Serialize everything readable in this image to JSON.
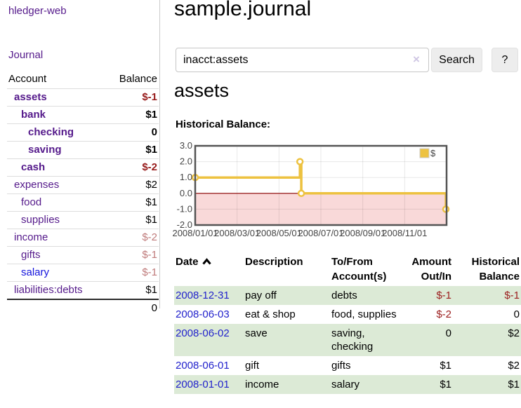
{
  "app": {
    "brand": "hledger-web",
    "nav": {
      "journal": "Journal"
    }
  },
  "sidebar": {
    "header": {
      "account": "Account",
      "balance": "Balance"
    },
    "accounts": [
      {
        "name": "assets",
        "balance": "$-1"
      },
      {
        "name": "bank",
        "balance": "$1"
      },
      {
        "name": "checking",
        "balance": "0"
      },
      {
        "name": "saving",
        "balance": "$1"
      },
      {
        "name": "cash",
        "balance": "$-2"
      },
      {
        "name": "expenses",
        "balance": "$2"
      },
      {
        "name": "food",
        "balance": "$1"
      },
      {
        "name": "supplies",
        "balance": "$1"
      },
      {
        "name": "income",
        "balance": "$-2"
      },
      {
        "name": "gifts",
        "balance": "$-1"
      },
      {
        "name": "salary",
        "balance": "$-1"
      },
      {
        "name": "liabilities:debts",
        "balance": "$1"
      }
    ],
    "total": "0"
  },
  "header": {
    "title": "sample.journal"
  },
  "search": {
    "value": "inacct:assets",
    "clear_icon": "×",
    "button": "Search",
    "help_button": "?"
  },
  "account_page": {
    "heading": "assets",
    "chart_label": "Historical Balance:"
  },
  "chart_data": {
    "type": "line",
    "step": true,
    "title": "Historical Balance",
    "series": [
      {
        "name": "$",
        "points": [
          [
            "2008/01/01",
            1.0
          ],
          [
            "2008/06/01",
            2.0
          ],
          [
            "2008/06/03",
            0.0
          ],
          [
            "2008/12/31",
            -1.0
          ]
        ]
      }
    ],
    "legend": [
      {
        "label": "$",
        "color": "#edc240"
      }
    ],
    "legend_position": "top-right",
    "x_ticks": [
      "2008/01/01",
      "2008/03/01",
      "2008/05/01",
      "2008/07/01",
      "2008/09/01",
      "2008/11/01"
    ],
    "y_ticks": [
      "3.0",
      "2.0",
      "1.0",
      "0.0",
      "-1.0",
      "-2.0"
    ],
    "xlim": [
      "2008/01/01",
      "2009/01/01"
    ],
    "ylim": [
      -2,
      3
    ],
    "grid": true,
    "line_color": "#edc240",
    "negative_fill": "#f9d9d9",
    "zero_line_color": "#8b0000",
    "border_color": "#545454",
    "gridline_color": "rgba(0,0,0,0.09)"
  },
  "register": {
    "header": {
      "date": "Date",
      "description": "Description",
      "account": "To/From Account(s)",
      "amount": "Amount Out/In",
      "balance": "Historical Balance"
    },
    "rows": [
      {
        "date": "2008-12-31",
        "description": "pay off",
        "account": "debts",
        "amount": "$-1",
        "balance": "$-1"
      },
      {
        "date": "2008-06-03",
        "description": "eat & shop",
        "account": "food, supplies",
        "amount": "$-2",
        "balance": "0"
      },
      {
        "date": "2008-06-02",
        "description": "save",
        "account": "saving, checking",
        "amount": "0",
        "balance": "$2"
      },
      {
        "date": "2008-06-01",
        "description": "gift",
        "account": "gifts",
        "amount": "$1",
        "balance": "$2"
      },
      {
        "date": "2008-01-01",
        "description": "income",
        "account": "salary",
        "amount": "$1",
        "balance": "$1"
      }
    ]
  },
  "colors": {
    "link_purple": "#551a8b",
    "link_blue": "#2222cc",
    "negative_strong": "#971b1b",
    "negative_soft": "#bf7a7a",
    "row_green": "#dcead6",
    "chart_line": "#edc240",
    "chart_negative_fill": "#f9d9d9",
    "chart_zero_line": "#8b0000"
  }
}
